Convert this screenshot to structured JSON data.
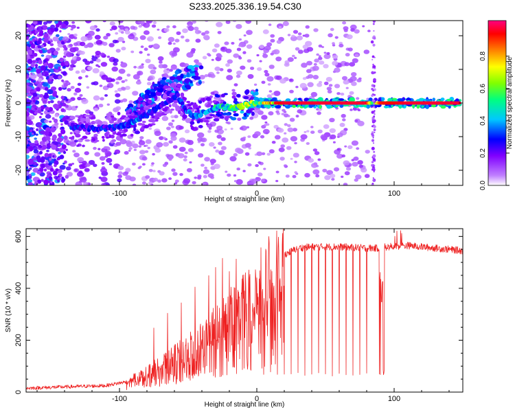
{
  "title": "S233.2025.336.19.54.C30",
  "chart_data": [
    {
      "type": "heatmap",
      "title": "S233.2025.336.19.54.C30",
      "xlabel": "Height of straight line (km)",
      "ylabel": "Frequency (Hz)",
      "xlim": [
        -168,
        150
      ],
      "ylim": [
        -24.5,
        24.5
      ],
      "xticks": [
        -100,
        0,
        100
      ],
      "xtick_labels": [
        "-100",
        "0",
        "100"
      ],
      "yticks": [
        -20,
        -10,
        0,
        10,
        20
      ],
      "ytick_labels": [
        "-20",
        "-10",
        "0",
        "10",
        "20"
      ],
      "colorbar": {
        "label": "Normalized spectral amplitude",
        "range": [
          0,
          1
        ],
        "ticks": [
          0.0,
          0.2,
          0.4,
          0.6,
          0.8
        ],
        "tick_labels": [
          "0.0",
          "0.2",
          "0.4",
          "0.6",
          "0.8"
        ],
        "colormap": [
          "#ffffff",
          "#8000ff",
          "#0000ff",
          "#00ffff",
          "#00ff00",
          "#ffff00",
          "#ff8000",
          "#ff0000",
          "#ff0080"
        ]
      },
      "ridge": {
        "x": [
          -135,
          -120,
          -105,
          -95,
          -88,
          -80,
          -72,
          -65,
          -58,
          -52,
          -45,
          -38,
          -30,
          -22,
          -15,
          -8,
          0,
          10,
          20,
          40,
          60,
          80,
          85,
          90,
          110,
          130,
          148
        ],
        "y": [
          -7,
          -7.5,
          -7.5,
          -6.5,
          -5,
          -3.5,
          -1.5,
          0.5,
          2.5,
          -2,
          -4,
          -2.5,
          -1.5,
          -1,
          -1.5,
          -0.5,
          0,
          0,
          0,
          0,
          0,
          0,
          0,
          0,
          0,
          0,
          0
        ],
        "amplitude": [
          0.3,
          0.3,
          0.3,
          0.35,
          0.4,
          0.35,
          0.3,
          0.3,
          0.3,
          0.35,
          0.4,
          0.45,
          0.5,
          0.55,
          0.6,
          0.7,
          0.75,
          0.85,
          0.95,
          0.95,
          0.95,
          0.95,
          0.5,
          0.9,
          0.95,
          0.95,
          0.95
        ]
      },
      "branch": {
        "x": [
          -95,
          -85,
          -75,
          -65,
          -55,
          -45,
          -40
        ],
        "y": [
          -5,
          -1,
          3,
          5.5,
          7,
          8,
          9
        ]
      }
    },
    {
      "type": "line",
      "xlabel": "Height of straight line (km)",
      "ylabel": "SNR (10 * v/v)",
      "xlim": [
        -168,
        150
      ],
      "ylim": [
        0,
        630
      ],
      "xticks": [
        -100,
        0,
        100
      ],
      "xtick_labels": [
        "-100",
        "0",
        "100"
      ],
      "yticks": [
        0,
        200,
        400,
        600
      ],
      "ytick_labels": [
        "0",
        "200",
        "400",
        "600"
      ],
      "color": "#ee2222",
      "envelope": {
        "x": [
          -168,
          -140,
          -110,
          -95,
          -85,
          -70,
          -55,
          -40,
          -25,
          -10,
          0,
          10,
          20,
          30,
          40,
          60,
          80,
          88,
          95,
          110,
          130,
          150
        ],
        "y": [
          15,
          20,
          25,
          40,
          70,
          110,
          160,
          210,
          290,
          370,
          420,
          480,
          530,
          555,
          560,
          560,
          555,
          555,
          560,
          565,
          555,
          545
        ]
      },
      "spike_x": [
        -75,
        -65,
        -55,
        -45,
        -35,
        -30,
        -25,
        -20,
        -15,
        -10,
        -5
      ],
      "spike_peak": [
        250,
        310,
        370,
        450,
        480,
        500,
        520,
        540,
        530,
        490,
        470
      ],
      "dropout_x": [
        5,
        10,
        15,
        20,
        25,
        30,
        35,
        40,
        45,
        50,
        55,
        60,
        65,
        70,
        75,
        80
      ],
      "dropout_floor": [
        60,
        60,
        60,
        60,
        60,
        60,
        60,
        60,
        60,
        60,
        60,
        60,
        60,
        60,
        60,
        60
      ],
      "dropout_band": [
        89,
        93
      ],
      "dropout_band_floor": 65
    }
  ]
}
